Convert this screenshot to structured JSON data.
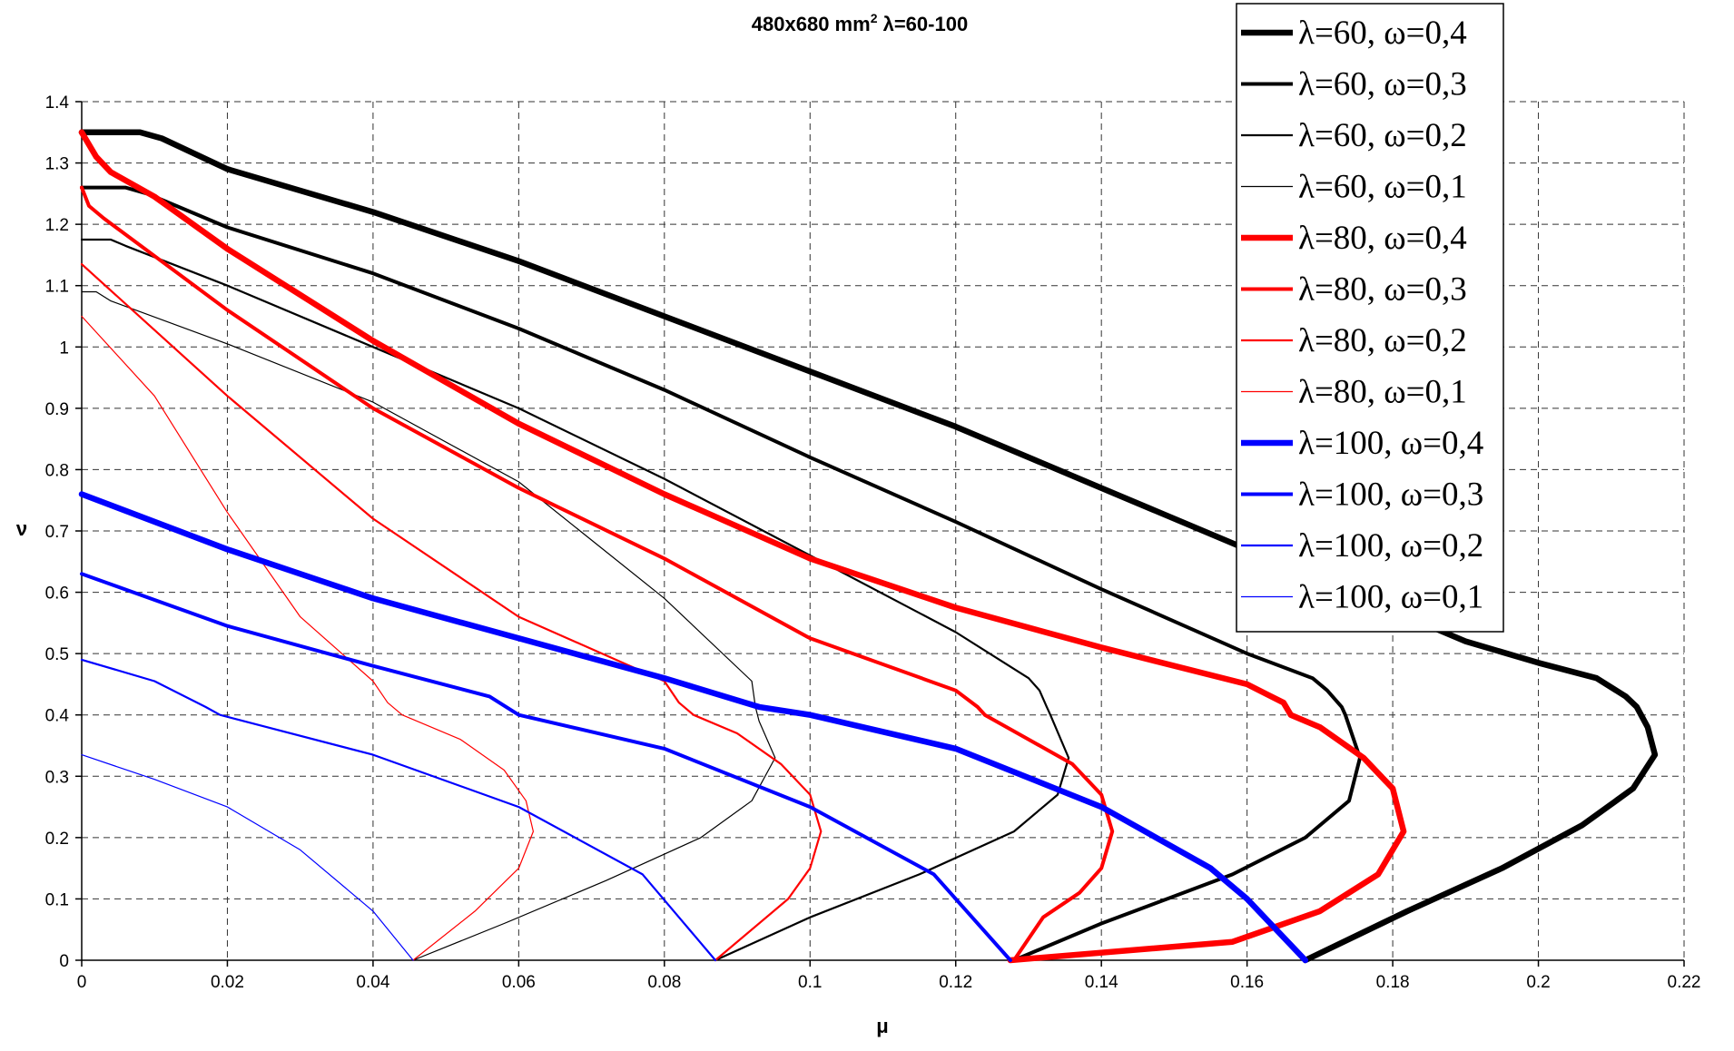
{
  "chart_data": {
    "type": "line",
    "title": "480x680 mm",
    "title_superscript": "2",
    "title_suffix": " λ=60-100",
    "xlabel": "μ",
    "ylabel": "ν",
    "xlim": [
      0,
      0.22
    ],
    "ylim": [
      0,
      1.4
    ],
    "xticks": [
      0,
      0.02,
      0.04,
      0.06,
      0.08,
      0.1,
      0.12,
      0.14,
      0.16,
      0.18,
      0.2,
      0.22
    ],
    "yticks": [
      0,
      0.1,
      0.2,
      0.3,
      0.4,
      0.5,
      0.6,
      0.7,
      0.8,
      0.9,
      1,
      1.1,
      1.2,
      1.3,
      1.4
    ],
    "xtick_labels": [
      "0",
      "0.02",
      "0.04",
      "0.06",
      "0.08",
      "0.1",
      "0.12",
      "0.14",
      "0.16",
      "0.18",
      "0.2",
      "0.22"
    ],
    "ytick_labels": [
      "0",
      "0.1",
      "0.2",
      "0.3",
      "0.4",
      "0.5",
      "0.6",
      "0.7",
      "0.8",
      "0.9",
      "1",
      "1.1",
      "1.2",
      "1.3",
      "1.4"
    ],
    "grid": true,
    "legend_position": "top-right",
    "series": [
      {
        "name": "λ=60, ω=0,4",
        "color": "#000000",
        "weight": 4,
        "points": [
          [
            0,
            1.35
          ],
          [
            0.008,
            1.35
          ],
          [
            0.011,
            1.34
          ],
          [
            0.02,
            1.29
          ],
          [
            0.04,
            1.22
          ],
          [
            0.06,
            1.14
          ],
          [
            0.08,
            1.05
          ],
          [
            0.1,
            0.96
          ],
          [
            0.12,
            0.87
          ],
          [
            0.14,
            0.77
          ],
          [
            0.16,
            0.67
          ],
          [
            0.18,
            0.57
          ],
          [
            0.19,
            0.52
          ],
          [
            0.2,
            0.485
          ],
          [
            0.208,
            0.46
          ],
          [
            0.212,
            0.43
          ],
          [
            0.2135,
            0.413
          ],
          [
            0.215,
            0.38
          ],
          [
            0.216,
            0.335
          ],
          [
            0.213,
            0.28
          ],
          [
            0.206,
            0.22
          ],
          [
            0.195,
            0.15
          ],
          [
            0.182,
            0.08
          ],
          [
            0.168,
            0
          ]
        ]
      },
      {
        "name": "λ=60, ω=0,3",
        "color": "#000000",
        "weight": 3,
        "points": [
          [
            0,
            1.26
          ],
          [
            0.006,
            1.26
          ],
          [
            0.009,
            1.25
          ],
          [
            0.016,
            1.215
          ],
          [
            0.02,
            1.195
          ],
          [
            0.04,
            1.12
          ],
          [
            0.06,
            1.03
          ],
          [
            0.08,
            0.93
          ],
          [
            0.1,
            0.82
          ],
          [
            0.12,
            0.715
          ],
          [
            0.14,
            0.605
          ],
          [
            0.16,
            0.5
          ],
          [
            0.169,
            0.46
          ],
          [
            0.171,
            0.44
          ],
          [
            0.173,
            0.413
          ],
          [
            0.1735,
            0.4
          ],
          [
            0.1755,
            0.33
          ],
          [
            0.174,
            0.26
          ],
          [
            0.168,
            0.2
          ],
          [
            0.158,
            0.14
          ],
          [
            0.14,
            0.06
          ],
          [
            0.128,
            0
          ]
        ]
      },
      {
        "name": "λ=60, ω=0,2",
        "color": "#000000",
        "weight": 2,
        "points": [
          [
            0,
            1.175
          ],
          [
            0.004,
            1.175
          ],
          [
            0.006,
            1.165
          ],
          [
            0.02,
            1.1
          ],
          [
            0.04,
            1.0
          ],
          [
            0.06,
            0.9
          ],
          [
            0.08,
            0.785
          ],
          [
            0.1,
            0.66
          ],
          [
            0.12,
            0.535
          ],
          [
            0.13,
            0.46
          ],
          [
            0.1315,
            0.44
          ],
          [
            0.1325,
            0.413
          ],
          [
            0.133,
            0.4
          ],
          [
            0.1355,
            0.33
          ],
          [
            0.134,
            0.27
          ],
          [
            0.128,
            0.21
          ],
          [
            0.115,
            0.14
          ],
          [
            0.1,
            0.07
          ],
          [
            0.087,
            0
          ]
        ]
      },
      {
        "name": "λ=60, ω=0,1",
        "color": "#000000",
        "weight": 1,
        "points": [
          [
            0,
            1.09
          ],
          [
            0.002,
            1.09
          ],
          [
            0.004,
            1.075
          ],
          [
            0.02,
            1.005
          ],
          [
            0.04,
            0.91
          ],
          [
            0.06,
            0.78
          ],
          [
            0.08,
            0.59
          ],
          [
            0.092,
            0.455
          ],
          [
            0.0925,
            0.413
          ],
          [
            0.093,
            0.39
          ],
          [
            0.0952,
            0.33
          ],
          [
            0.092,
            0.26
          ],
          [
            0.085,
            0.2
          ],
          [
            0.072,
            0.13
          ],
          [
            0.058,
            0.06
          ],
          [
            0.0455,
            0
          ]
        ]
      },
      {
        "name": "λ=80, ω=0,4",
        "color": "#ff0000",
        "weight": 4,
        "points": [
          [
            0,
            1.35
          ],
          [
            0.002,
            1.31
          ],
          [
            0.004,
            1.285
          ],
          [
            0.01,
            1.245
          ],
          [
            0.02,
            1.16
          ],
          [
            0.04,
            1.01
          ],
          [
            0.06,
            0.875
          ],
          [
            0.08,
            0.76
          ],
          [
            0.1,
            0.655
          ],
          [
            0.12,
            0.575
          ],
          [
            0.14,
            0.51
          ],
          [
            0.16,
            0.45
          ],
          [
            0.165,
            0.42
          ],
          [
            0.166,
            0.4
          ],
          [
            0.17,
            0.38
          ],
          [
            0.176,
            0.33
          ],
          [
            0.18,
            0.28
          ],
          [
            0.1815,
            0.21
          ],
          [
            0.178,
            0.14
          ],
          [
            0.17,
            0.08
          ],
          [
            0.158,
            0.03
          ],
          [
            0.1275,
            0
          ]
        ]
      },
      {
        "name": "λ=80, ω=0,3",
        "color": "#ff0000",
        "weight": 3,
        "points": [
          [
            0,
            1.26
          ],
          [
            0.001,
            1.23
          ],
          [
            0.003,
            1.21
          ],
          [
            0.02,
            1.06
          ],
          [
            0.04,
            0.9
          ],
          [
            0.06,
            0.77
          ],
          [
            0.08,
            0.655
          ],
          [
            0.1,
            0.525
          ],
          [
            0.12,
            0.44
          ],
          [
            0.123,
            0.413
          ],
          [
            0.124,
            0.4
          ],
          [
            0.13,
            0.36
          ],
          [
            0.136,
            0.32
          ],
          [
            0.14,
            0.27
          ],
          [
            0.1415,
            0.21
          ],
          [
            0.14,
            0.15
          ],
          [
            0.137,
            0.11
          ],
          [
            0.132,
            0.07
          ],
          [
            0.128,
            0
          ]
        ]
      },
      {
        "name": "λ=80, ω=0,2",
        "color": "#ff0000",
        "weight": 2,
        "points": [
          [
            0,
            1.135
          ],
          [
            0.02,
            0.92
          ],
          [
            0.04,
            0.72
          ],
          [
            0.06,
            0.56
          ],
          [
            0.08,
            0.455
          ],
          [
            0.082,
            0.42
          ],
          [
            0.084,
            0.4
          ],
          [
            0.09,
            0.37
          ],
          [
            0.096,
            0.32
          ],
          [
            0.1,
            0.27
          ],
          [
            0.1015,
            0.21
          ],
          [
            0.1,
            0.15
          ],
          [
            0.097,
            0.1
          ],
          [
            0.087,
            0
          ]
        ]
      },
      {
        "name": "λ=80, ω=0,1",
        "color": "#ff0000",
        "weight": 1,
        "points": [
          [
            0,
            1.05
          ],
          [
            0.01,
            0.92
          ],
          [
            0.02,
            0.73
          ],
          [
            0.03,
            0.56
          ],
          [
            0.04,
            0.455
          ],
          [
            0.042,
            0.42
          ],
          [
            0.044,
            0.4
          ],
          [
            0.052,
            0.36
          ],
          [
            0.058,
            0.31
          ],
          [
            0.061,
            0.26
          ],
          [
            0.062,
            0.21
          ],
          [
            0.06,
            0.15
          ],
          [
            0.054,
            0.08
          ],
          [
            0.0455,
            0
          ]
        ]
      },
      {
        "name": "λ=100, ω=0,4",
        "color": "#0000ff",
        "weight": 4,
        "points": [
          [
            0,
            0.76
          ],
          [
            0.02,
            0.67
          ],
          [
            0.04,
            0.59
          ],
          [
            0.06,
            0.525
          ],
          [
            0.08,
            0.46
          ],
          [
            0.093,
            0.413
          ],
          [
            0.1,
            0.4
          ],
          [
            0.12,
            0.345
          ],
          [
            0.14,
            0.25
          ],
          [
            0.155,
            0.15
          ],
          [
            0.16,
            0.1
          ],
          [
            0.168,
            0
          ]
        ]
      },
      {
        "name": "λ=100, ω=0,3",
        "color": "#0000ff",
        "weight": 3,
        "points": [
          [
            0,
            0.63
          ],
          [
            0.02,
            0.545
          ],
          [
            0.04,
            0.48
          ],
          [
            0.056,
            0.43
          ],
          [
            0.06,
            0.4
          ],
          [
            0.08,
            0.345
          ],
          [
            0.1,
            0.25
          ],
          [
            0.117,
            0.14
          ],
          [
            0.1275,
            0
          ]
        ]
      },
      {
        "name": "λ=100, ω=0,2",
        "color": "#0000ff",
        "weight": 2,
        "points": [
          [
            0,
            0.49
          ],
          [
            0.01,
            0.455
          ],
          [
            0.017,
            0.413
          ],
          [
            0.019,
            0.4
          ],
          [
            0.04,
            0.335
          ],
          [
            0.06,
            0.25
          ],
          [
            0.077,
            0.14
          ],
          [
            0.087,
            0
          ]
        ]
      },
      {
        "name": "λ=100, ω=0,1",
        "color": "#0000ff",
        "weight": 1,
        "points": [
          [
            0,
            0.335
          ],
          [
            0.01,
            0.295
          ],
          [
            0.02,
            0.25
          ],
          [
            0.03,
            0.18
          ],
          [
            0.04,
            0.08
          ],
          [
            0.0455,
            0
          ]
        ]
      }
    ]
  }
}
